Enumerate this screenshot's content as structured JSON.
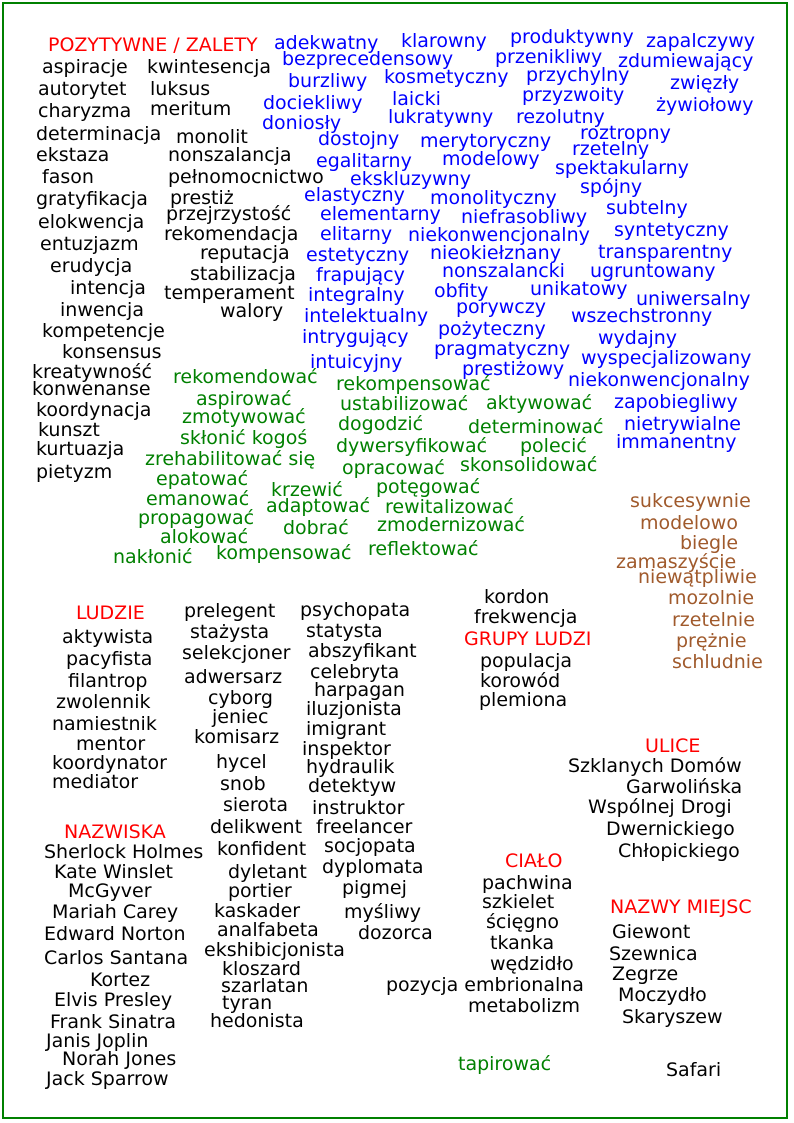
{
  "colors": {
    "border": "#008000",
    "heading": "#ff0000",
    "noun": "#000000",
    "adjective": "#0000ff",
    "verb": "#008000",
    "adverb": "#a05a2c"
  },
  "sections": {
    "positive": {
      "heading": "POZYTYWNE / ZALETY",
      "nouns_col1": [
        "aspiracje",
        "autorytet",
        "charyzma",
        "determinacja",
        "ekstaza",
        "fason",
        "gratyfikacja",
        "elokwencja",
        "entuzjazm",
        "erudycja",
        "intencja",
        "inwencja",
        "kompetencje",
        "konsensus",
        "kreatywność",
        "konwenanse",
        "koordynacja",
        "kunszt",
        "kurtuazja",
        "pietyzm"
      ],
      "nouns_col2": [
        "kwintesencja",
        "luksus",
        "meritum",
        "monolit",
        "nonszalancja",
        "pełnomocnictwo",
        "prestiż",
        "przejrzystość",
        "rekomendacja",
        "reputacja",
        "stabilizacja",
        "temperament",
        "walory"
      ],
      "adjectives": [
        "adekwatny",
        "klarowny",
        "produktywny",
        "zapalczywy",
        "bezprecedensowy",
        "przenikliwy",
        "zdumiewający",
        "burzliwy",
        "kosmetyczny",
        "przychylny",
        "zwięzły",
        "dociekliwy",
        "laicki",
        "przyzwoity",
        "żywiołowy",
        "doniosły",
        "lukratywny",
        "rezolutny",
        "dostojny",
        "merytoryczny",
        "roztropny",
        "rzetelny",
        "egalitarny",
        "modelowy",
        "spektakularny",
        "ekskluzywny",
        "spójny",
        "elastyczny",
        "monolityczny",
        "subtelny",
        "elementarny",
        "niefrasobliwy",
        "elitarny",
        "niekonwencjonalny",
        "syntetyczny",
        "estetyczny",
        "nieokiełznany",
        "transparentny",
        "frapujący",
        "nonszalancki",
        "ugruntowany",
        "integralny",
        "obfity",
        "unikatowy",
        "uniwersalny",
        "intelektualny",
        "porywczy",
        "wszechstronny",
        "intrygujący",
        "pożyteczny",
        "wydajny",
        "pragmatyczny",
        "intuicyjny",
        "prestiżowy",
        "wyspecjalizowany",
        "niekonwencjonalny",
        "zapobiegliwy",
        "nietrywialne",
        "immanentny"
      ],
      "verbs": [
        "rekomendować",
        "rekompensować",
        "aspirować",
        "ustabilizować",
        "aktywować",
        "zmotywować",
        "dogodzić",
        "determinować",
        "skłonić kogoś",
        "dywersyfikować",
        "polecić",
        "zrehabilitować się",
        "opracować",
        "skonsolidować",
        "epatować",
        "krzewić",
        "potęgować",
        "emanować",
        "adaptować",
        "rewitalizować",
        "propagować",
        "zmodernizować",
        "alokować",
        "dobrać",
        "reflektować",
        "nakłonić",
        "kompensować"
      ],
      "adverbs": [
        "sukcesywnie",
        "modelowo",
        "biegle",
        "zamaszyście",
        "niewątpliwie",
        "mozolnie",
        "rzetelnie",
        "prężnie",
        "schludnie"
      ]
    },
    "people": {
      "heading": "LUDZIE",
      "col1": [
        "aktywista",
        "pacyfista",
        "filantrop",
        "zwolennik",
        "namiestnik",
        "mentor",
        "koordynator",
        "mediator"
      ],
      "col2": [
        "prelegent",
        "stażysta",
        "selekcjoner",
        "adwersarz",
        "cyborg",
        "jeniec",
        "komisarz",
        "hycel",
        "snob",
        "sierota",
        "delikwent",
        "konfident",
        "dyletant",
        "portier",
        "kaskader",
        "analfabeta",
        "ekshibicjonista",
        "kloszard",
        "szarlatan",
        "tyran",
        "hedonista"
      ],
      "col3": [
        "psychopata",
        "statysta",
        "abszyfikant",
        "celebryta",
        "harpagan",
        "iluzjonista",
        "imigrant",
        "inspektor",
        "hydraulik",
        "detektyw",
        "instruktor",
        "freelancer",
        "socjopata",
        "dyplomata",
        "pigmej",
        "myśliwy",
        "dozorca"
      ]
    },
    "groups": {
      "heading": "GRUPY LUDZI",
      "above": [
        "kordon",
        "frekwencja"
      ],
      "items": [
        "populacja",
        "korowód",
        "plemiona"
      ]
    },
    "surnames": {
      "heading": "NAZWISKA",
      "items": [
        "Sherlock Holmes",
        "Kate Winslet",
        "McGyver",
        "Mariah Carey",
        "Edward Norton",
        "Carlos Santana",
        "Kortez",
        "Elvis Presley",
        "Frank Sinatra",
        "Janis Joplin",
        "Norah Jones",
        "Jack Sparrow"
      ]
    },
    "streets": {
      "heading": "ULICE",
      "items": [
        "Szklanych Domów",
        "Garwolińska",
        "Wspólnej Drogi",
        "Dwernickiego",
        "Chłopickiego"
      ]
    },
    "body": {
      "heading": "CIAŁO",
      "items": [
        "pachwina",
        "szkielet",
        "ścięgno",
        "tkanka",
        "wędzidło",
        "pozycja embrionalna",
        "metabolizm"
      ]
    },
    "places": {
      "heading": "NAZWY MIEJSC",
      "items": [
        "Giewont",
        "Szewnica",
        "Zegrze",
        "Moczydło",
        "Skaryszew"
      ]
    },
    "extra": {
      "verb": "tapirować",
      "place": "Safari"
    }
  }
}
